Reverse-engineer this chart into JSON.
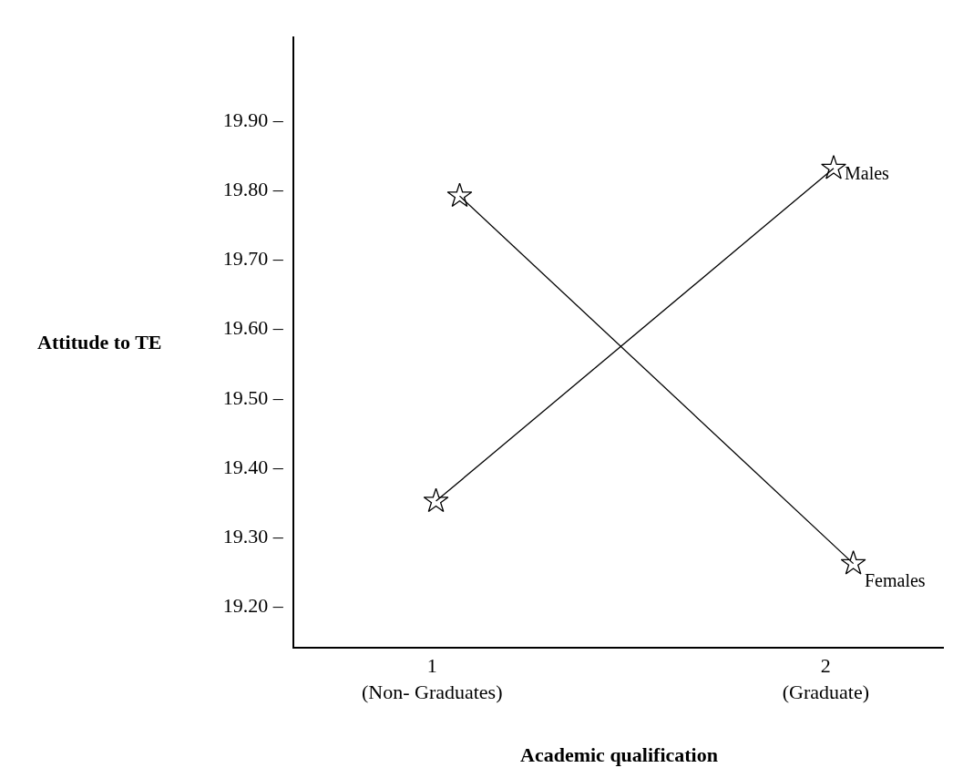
{
  "chart_data": {
    "type": "line",
    "xlabel": "Academic qualification",
    "ylabel": "Attitude to TE",
    "xlim": [
      0.65,
      2.3
    ],
    "xticks": [
      {
        "value": 1,
        "label": "1\n(Non- Graduates)"
      },
      {
        "value": 2,
        "label": "2\n(Graduate)"
      }
    ],
    "ylim": [
      19.14,
      20.02
    ],
    "yticks": [
      {
        "value": 19.2,
        "label": "19.20 –"
      },
      {
        "value": 19.3,
        "label": "19.30 –"
      },
      {
        "value": 19.4,
        "label": "19.40 –"
      },
      {
        "value": 19.5,
        "label": "19.50 –"
      },
      {
        "value": 19.6,
        "label": "19.60 –"
      },
      {
        "value": 19.7,
        "label": "19.70 –"
      },
      {
        "value": 19.8,
        "label": "19.80 –"
      },
      {
        "value": 19.9,
        "label": "19.90 –"
      }
    ],
    "series": [
      {
        "name": "Males",
        "color": "#000000",
        "x": [
          1.01,
          2.02
        ],
        "values": [
          19.35,
          19.83
        ]
      },
      {
        "name": "Females",
        "color": "#000000",
        "x": [
          1.07,
          2.07
        ],
        "values": [
          19.79,
          19.26
        ]
      }
    ],
    "marker": "star",
    "line_style": "solid",
    "grid": false,
    "legend": false
  }
}
